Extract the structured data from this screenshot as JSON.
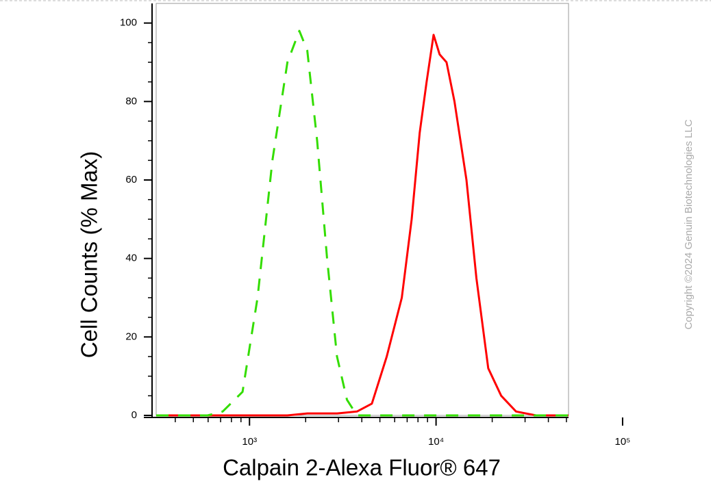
{
  "chart_data": {
    "type": "line",
    "x_label": "Calpain 2-Alexa Fluor® 647",
    "y_label": "Cell Counts (% Max)",
    "watermark": "Copyright ©2024 Genuin Biotechnologies LLC",
    "xscale": "log",
    "xlim": [
      316,
      51300
    ],
    "ylim": [
      0,
      105
    ],
    "xticks": [
      {
        "value": 1000,
        "label": "10³"
      },
      {
        "value": 10000,
        "label": "10⁴"
      },
      {
        "value": 100000,
        "label": "10⁵"
      }
    ],
    "xminorticks": [
      400,
      500,
      600,
      700,
      800,
      900,
      2000,
      3000,
      4000,
      5000,
      6000,
      7000,
      8000,
      9000,
      20000,
      30000,
      40000,
      50000
    ],
    "yticks": [
      0,
      20,
      40,
      60,
      80,
      100
    ],
    "yminorticks": [
      5,
      10,
      15,
      25,
      30,
      35,
      45,
      50,
      55,
      65,
      70,
      75,
      85,
      90,
      95
    ],
    "series": [
      {
        "color": "#ff0000",
        "dash": "solid",
        "x": [
          316,
          1596,
          2040,
          2950,
          3770,
          4530,
          5440,
          6550,
          7400,
          8170,
          8900,
          9700,
          10450,
          11380,
          12550,
          14550,
          16450,
          19050,
          22340,
          26850,
          34350,
          51300
        ],
        "values": [
          0,
          0,
          0.5,
          0.5,
          1,
          3,
          15,
          30,
          50,
          72,
          85,
          97,
          92,
          90,
          80,
          60,
          35,
          12,
          5,
          1,
          0,
          0
        ]
      },
      {
        "color": "#33dd00",
        "dash": "dashed",
        "x": [
          316,
          597,
          718,
          918,
          1104,
          1327,
          1596,
          1849,
          2040,
          2305,
          2606,
          2945,
          3330,
          3770,
          51300
        ],
        "values": [
          0,
          0,
          1,
          6,
          30,
          65,
          90,
          98,
          93,
          70,
          40,
          15,
          4,
          0,
          0
        ]
      }
    ]
  }
}
